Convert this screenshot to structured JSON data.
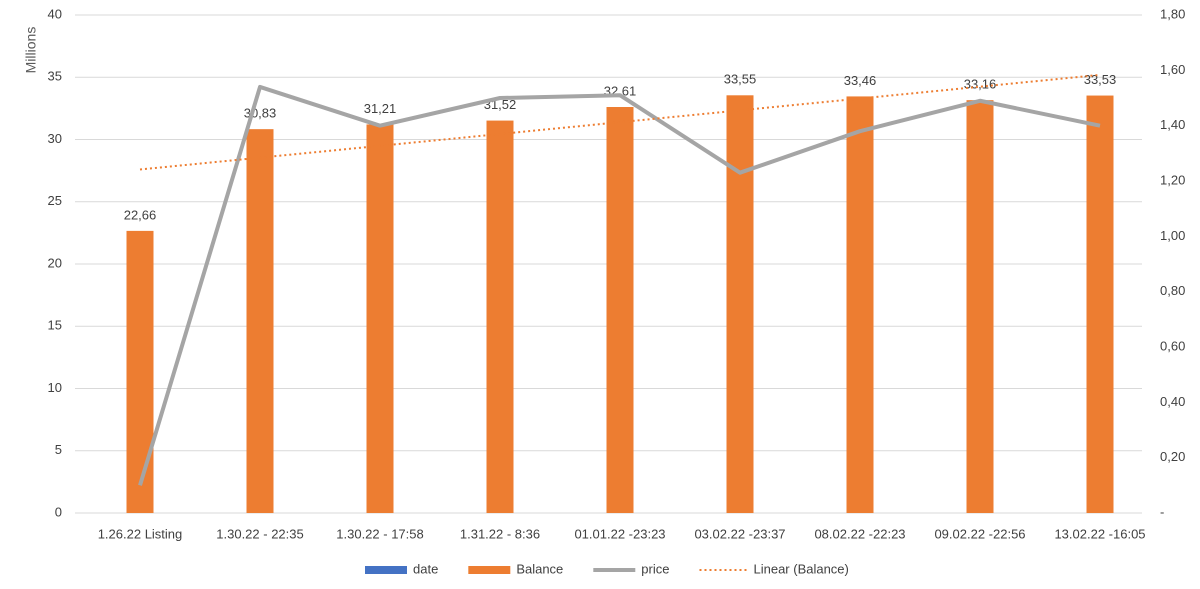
{
  "chart_data": {
    "type": "bar",
    "y_label": "Millions",
    "categories": [
      "1.26.22 Listing",
      "1.30.22 - 22:35",
      "1.30.22 - 17:58",
      "1.31.22 - 8:36",
      "01.01.22 -23:23",
      "03.02.22 -23:37",
      "08.02.22 -22:23",
      "09.02.22 -22:56",
      "13.02.22 -16:05"
    ],
    "series": [
      {
        "name": "date",
        "color": "#4472c4",
        "values": [
          null,
          null,
          null,
          null,
          null,
          null,
          null,
          null,
          null
        ]
      },
      {
        "name": "Balance",
        "color": "#ed7d31",
        "values": [
          22.66,
          30.83,
          31.21,
          31.52,
          32.61,
          33.55,
          33.46,
          33.16,
          33.53
        ],
        "value_labels": [
          "22,66",
          "30,83",
          "31,21",
          "31,52",
          "32,61",
          "33,55",
          "33,46",
          "33,16",
          "33,53"
        ]
      },
      {
        "name": "price",
        "color": "#a5a5a5",
        "axis": "y2",
        "values": [
          0.1,
          1.54,
          1.4,
          1.5,
          1.51,
          1.23,
          1.38,
          1.49,
          1.4
        ]
      }
    ],
    "trendline": {
      "name": "Linear (Balance)",
      "color": "#ed7d31",
      "fit": "linear"
    },
    "ylim": [
      0,
      40
    ],
    "yticks": [
      0,
      5,
      10,
      15,
      20,
      25,
      30,
      35,
      40
    ],
    "y2lim": [
      0,
      1.8
    ],
    "y2ticks": [
      {
        "value": 0,
        "label": "-"
      },
      {
        "value": 0.2,
        "label": "0,20"
      },
      {
        "value": 0.4,
        "label": "0,40"
      },
      {
        "value": 0.6,
        "label": "0,60"
      },
      {
        "value": 0.8,
        "label": "0,80"
      },
      {
        "value": 1.0,
        "label": "1,00"
      },
      {
        "value": 1.2,
        "label": "1,20"
      },
      {
        "value": 1.4,
        "label": "1,40"
      },
      {
        "value": 1.6,
        "label": "1,60"
      },
      {
        "value": 1.8,
        "label": "1,80"
      }
    ],
    "grid": true
  }
}
